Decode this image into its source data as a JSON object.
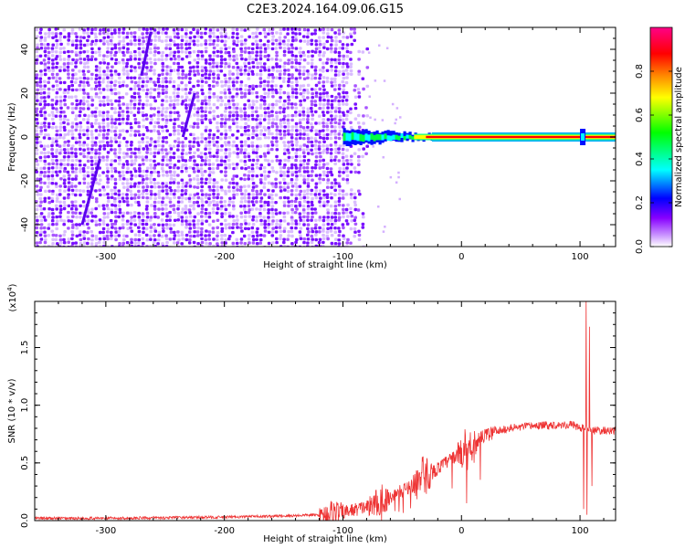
{
  "figure": {
    "title": "C2E3.2024.164.09.06.G15"
  },
  "chart_data": [
    {
      "type": "heatmap",
      "xlabel": "Height of straight line (km)",
      "ylabel": "Frequency (Hz)",
      "xlim": [
        -360,
        130
      ],
      "ylim": [
        -50,
        50
      ],
      "x_ticks": [
        -300,
        -200,
        -100,
        0,
        100
      ],
      "x_tick_labels": [
        "-300",
        "-200",
        "-100",
        "0",
        "100"
      ],
      "y_ticks": [
        -40,
        -20,
        0,
        20,
        40
      ],
      "y_tick_labels": [
        "-40",
        "-20",
        "0",
        "20",
        "40"
      ],
      "colorbar": {
        "label": "Normalized spectral amplitude",
        "range": [
          0,
          1
        ],
        "ticks": [
          0.0,
          0.2,
          0.4,
          0.6,
          0.8
        ],
        "tick_labels": [
          "0.0",
          "0.2",
          "0.4",
          "0.6",
          "0.8"
        ],
        "colormap": [
          "#ffffff",
          "#cc99ff",
          "#8800ff",
          "#0000ff",
          "#00ffff",
          "#00ff00",
          "#ffff00",
          "#ff8800",
          "#ff0000",
          "#ff0088"
        ]
      },
      "noise_region_x": [
        -360,
        -80
      ],
      "signal_band": {
        "frequency": 0,
        "x": [
          -100,
          130
        ],
        "peak_amplitude": 0.9
      },
      "streaks": [
        {
          "x_start": -320,
          "x_end": -305,
          "f_start": -40,
          "f_end": -10
        },
        {
          "x_start": -235,
          "x_end": -225,
          "f_start": 0,
          "f_end": 20
        },
        {
          "x_start": -270,
          "x_end": -262,
          "f_start": 28,
          "f_end": 48
        }
      ],
      "grid": false
    },
    {
      "type": "line",
      "xlabel": "Height of straight line (km)",
      "ylabel": "SNR (10 * v/v)",
      "y_multiplier": "(x10",
      "y_multiplier_exp": "4",
      "y_multiplier_close": ")",
      "xlim": [
        -360,
        130
      ],
      "ylim": [
        0,
        1.9
      ],
      "x_ticks": [
        -300,
        -200,
        -100,
        0,
        100
      ],
      "x_tick_labels": [
        "-300",
        "-200",
        "-100",
        "0",
        "100"
      ],
      "y_ticks": [
        0.0,
        0.5,
        1.0,
        1.5
      ],
      "y_tick_labels": [
        "0.0",
        "0.5",
        "1.0",
        "1.5"
      ],
      "color": "#ee3333",
      "envelope": {
        "x": [
          -360,
          -300,
          -250,
          -200,
          -150,
          -120,
          -100,
          -80,
          -60,
          -40,
          -20,
          0,
          20,
          40,
          60,
          80,
          95,
          100,
          105,
          110,
          130
        ],
        "y": [
          0.02,
          0.02,
          0.025,
          0.03,
          0.04,
          0.05,
          0.07,
          0.12,
          0.2,
          0.32,
          0.45,
          0.6,
          0.74,
          0.8,
          0.82,
          0.83,
          0.83,
          0.8,
          0.8,
          0.78,
          0.78
        ]
      },
      "spikes": [
        {
          "x": 103,
          "y": 0.1
        },
        {
          "x": 105,
          "y": 1.9
        },
        {
          "x": 106,
          "y": 0.05
        },
        {
          "x": 108,
          "y": 1.68
        },
        {
          "x": 110,
          "y": 0.3
        }
      ],
      "grid": false
    }
  ]
}
